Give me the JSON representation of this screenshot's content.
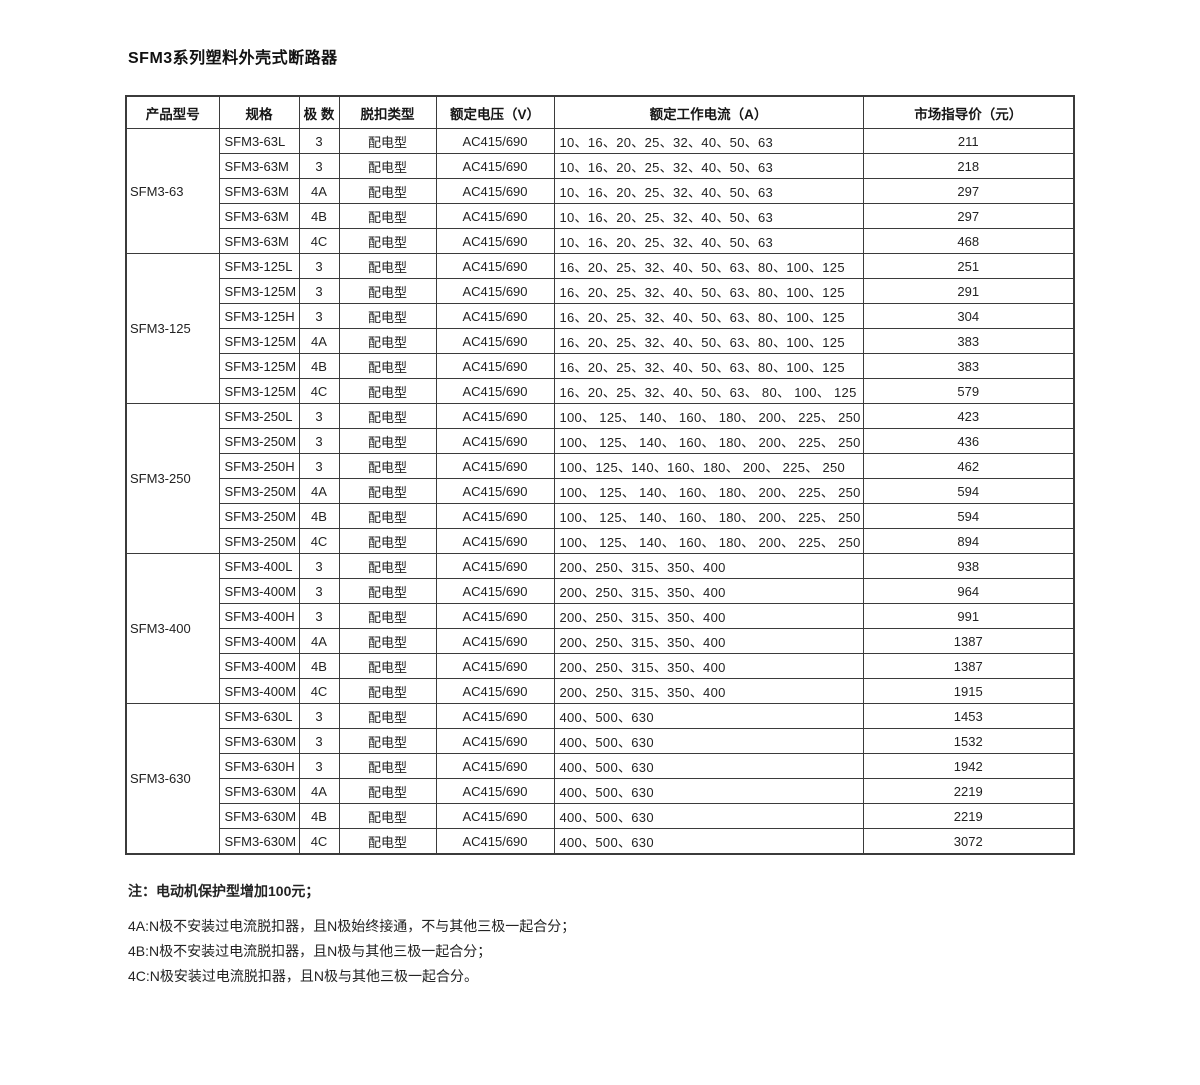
{
  "title": "SFM3系列塑料外壳式断路器",
  "table": {
    "headers": [
      "产品型号",
      "规格",
      "极 数",
      "脱扣类型",
      "额定电压（V）",
      "额定工作电流（A）",
      "市场指导价（元）"
    ],
    "groups": [
      {
        "model": "SFM3-63",
        "rows": [
          {
            "spec": "SFM3-63L",
            "poles": "3",
            "trip": "配电型",
            "voltage": "AC415/690",
            "current": "10、16、20、25、32、40、50、63",
            "price": "211"
          },
          {
            "spec": "SFM3-63M",
            "poles": "3",
            "trip": "配电型",
            "voltage": "AC415/690",
            "current": "10、16、20、25、32、40、50、63",
            "price": "218"
          },
          {
            "spec": "SFM3-63M",
            "poles": "4A",
            "trip": "配电型",
            "voltage": "AC415/690",
            "current": "10、16、20、25、32、40、50、63",
            "price": "297"
          },
          {
            "spec": "SFM3-63M",
            "poles": "4B",
            "trip": "配电型",
            "voltage": "AC415/690",
            "current": "10、16、20、25、32、40、50、63",
            "price": "297"
          },
          {
            "spec": "SFM3-63M",
            "poles": "4C",
            "trip": "配电型",
            "voltage": "AC415/690",
            "current": "10、16、20、25、32、40、50、63",
            "price": "468"
          }
        ]
      },
      {
        "model": "SFM3-125",
        "rows": [
          {
            "spec": "SFM3-125L",
            "poles": "3",
            "trip": "配电型",
            "voltage": "AC415/690",
            "current": "16、20、25、32、40、50、63、80、100、125",
            "price": "251"
          },
          {
            "spec": "SFM3-125M",
            "poles": "3",
            "trip": "配电型",
            "voltage": "AC415/690",
            "current": "16、20、25、32、40、50、63、80、100、125",
            "price": "291"
          },
          {
            "spec": "SFM3-125H",
            "poles": "3",
            "trip": "配电型",
            "voltage": "AC415/690",
            "current": "16、20、25、32、40、50、63、80、100、125",
            "price": "304"
          },
          {
            "spec": "SFM3-125M",
            "poles": "4A",
            "trip": "配电型",
            "voltage": "AC415/690",
            "current": "16、20、25、32、40、50、63、80、100、125",
            "price": "383"
          },
          {
            "spec": "SFM3-125M",
            "poles": "4B",
            "trip": "配电型",
            "voltage": "AC415/690",
            "current": "16、20、25、32、40、50、63、80、100、125",
            "price": "383"
          },
          {
            "spec": "SFM3-125M",
            "poles": "4C",
            "trip": "配电型",
            "voltage": "AC415/690",
            "current": "16、20、25、32、40、50、63、 80、 100、 125",
            "price": "579"
          }
        ]
      },
      {
        "model": "SFM3-250",
        "rows": [
          {
            "spec": "SFM3-250L",
            "poles": "3",
            "trip": "配电型",
            "voltage": "AC415/690",
            "current": "100、 125、 140、 160、 180、 200、 225、 250",
            "price": "423"
          },
          {
            "spec": "SFM3-250M",
            "poles": "3",
            "trip": "配电型",
            "voltage": "AC415/690",
            "current": "100、 125、 140、 160、 180、 200、 225、 250",
            "price": "436"
          },
          {
            "spec": "SFM3-250H",
            "poles": "3",
            "trip": "配电型",
            "voltage": "AC415/690",
            "current": "100、125、140、160、180、 200、 225、 250",
            "price": "462"
          },
          {
            "spec": "SFM3-250M",
            "poles": "4A",
            "trip": "配电型",
            "voltage": "AC415/690",
            "current": "100、 125、 140、 160、 180、 200、 225、 250",
            "price": "594"
          },
          {
            "spec": "SFM3-250M",
            "poles": "4B",
            "trip": "配电型",
            "voltage": "AC415/690",
            "current": "100、 125、 140、 160、 180、 200、 225、 250",
            "price": "594"
          },
          {
            "spec": "SFM3-250M",
            "poles": "4C",
            "trip": "配电型",
            "voltage": "AC415/690",
            "current": "100、 125、 140、 160、 180、 200、 225、 250",
            "price": "894"
          }
        ]
      },
      {
        "model": "SFM3-400",
        "rows": [
          {
            "spec": "SFM3-400L",
            "poles": "3",
            "trip": "配电型",
            "voltage": "AC415/690",
            "current": "200、250、315、350、400",
            "price": "938"
          },
          {
            "spec": "SFM3-400M",
            "poles": "3",
            "trip": "配电型",
            "voltage": "AC415/690",
            "current": "200、250、315、350、400",
            "price": "964"
          },
          {
            "spec": "SFM3-400H",
            "poles": "3",
            "trip": "配电型",
            "voltage": "AC415/690",
            "current": "200、250、315、350、400",
            "price": "991"
          },
          {
            "spec": "SFM3-400M",
            "poles": "4A",
            "trip": "配电型",
            "voltage": "AC415/690",
            "current": "200、250、315、350、400",
            "price": "1387"
          },
          {
            "spec": "SFM3-400M",
            "poles": "4B",
            "trip": "配电型",
            "voltage": "AC415/690",
            "current": "200、250、315、350、400",
            "price": "1387"
          },
          {
            "spec": "SFM3-400M",
            "poles": "4C",
            "trip": "配电型",
            "voltage": "AC415/690",
            "current": "200、250、315、350、400",
            "price": "1915"
          }
        ]
      },
      {
        "model": "SFM3-630",
        "rows": [
          {
            "spec": "SFM3-630L",
            "poles": "3",
            "trip": "配电型",
            "voltage": "AC415/690",
            "current": "400、500、630",
            "price": "1453"
          },
          {
            "spec": "SFM3-630M",
            "poles": "3",
            "trip": "配电型",
            "voltage": "AC415/690",
            "current": "400、500、630",
            "price": "1532"
          },
          {
            "spec": "SFM3-630H",
            "poles": "3",
            "trip": "配电型",
            "voltage": "AC415/690",
            "current": "400、500、630",
            "price": "1942"
          },
          {
            "spec": "SFM3-630M",
            "poles": "4A",
            "trip": "配电型",
            "voltage": "AC415/690",
            "current": "400、500、630",
            "price": "2219"
          },
          {
            "spec": "SFM3-630M",
            "poles": "4B",
            "trip": "配电型",
            "voltage": "AC415/690",
            "current": "400、500、630",
            "price": "2219"
          },
          {
            "spec": "SFM3-630M",
            "poles": "4C",
            "trip": "配电型",
            "voltage": "AC415/690",
            "current": "400、500、630",
            "price": "3072"
          }
        ]
      }
    ]
  },
  "notes": {
    "general": "注：电动机保护型增加100元；",
    "a": "4A:N极不安装过电流脱扣器，且N极始终接通，不与其他三极一起合分；",
    "b": "4B:N极不安装过电流脱扣器，且N极与其他三极一起合分；",
    "c": "4C:N极安装过电流脱扣器，且N极与其他三极一起合分。"
  },
  "colors": {
    "text": "#1e1e1e",
    "border": "#3b3b3b",
    "background": "#ffffff"
  }
}
